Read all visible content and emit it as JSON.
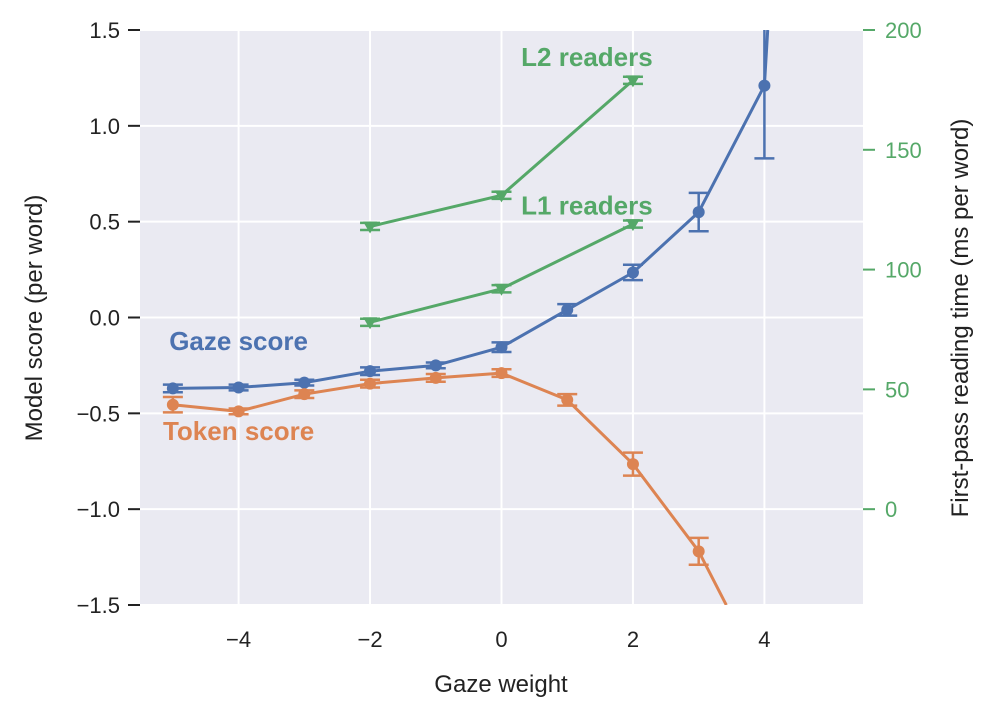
{
  "chart_data": {
    "type": "line",
    "xlabel": "Gaze weight",
    "ylabel": "Model score (per word)",
    "y2label": "First-pass reading time (ms per word)",
    "xlim": [
      -5.5,
      5.5
    ],
    "ylim": [
      -1.5,
      1.5
    ],
    "y2lim": [
      -40,
      200
    ],
    "xticks": [
      -4,
      -2,
      0,
      2,
      4
    ],
    "xtick_labels": [
      "−4",
      "−2",
      "0",
      "2",
      "4"
    ],
    "yticks": [
      -1.5,
      -1.0,
      -0.5,
      0.0,
      0.5,
      1.0,
      1.5
    ],
    "ytick_labels": [
      "−1.5",
      "−1.0",
      "−0.5",
      "0.0",
      "0.5",
      "1.0",
      "1.5"
    ],
    "y2ticks": [
      0,
      50,
      100,
      150,
      200
    ],
    "y2tick_labels": [
      "0",
      "50",
      "100",
      "150",
      "200"
    ],
    "grid": true,
    "colors": {
      "background": "#eaeaf2",
      "grid": "#ffffff",
      "blue": "#4c72b0",
      "orange": "#dd8452",
      "green": "#55a868"
    },
    "series": [
      {
        "name": "Gaze score",
        "axis": "left",
        "color": "#4c72b0",
        "marker": "circle",
        "x": [
          -5,
          -4,
          -3,
          -2,
          -1,
          0,
          1,
          2,
          3,
          4,
          4.05
        ],
        "y": [
          -0.37,
          -0.365,
          -0.34,
          -0.28,
          -0.25,
          -0.155,
          0.04,
          0.235,
          0.55,
          1.21,
          1.5
        ],
        "err": [
          0.02,
          0.015,
          0.015,
          0.02,
          0.015,
          0.025,
          0.03,
          0.04,
          0.1,
          0.38,
          0
        ],
        "label_at": [
          -4,
          -0.17
        ]
      },
      {
        "name": "Token score",
        "axis": "left",
        "color": "#dd8452",
        "marker": "circle",
        "x": [
          -5,
          -4,
          -3,
          -2,
          -1,
          0,
          1,
          2,
          3,
          3.42
        ],
        "y": [
          -0.455,
          -0.49,
          -0.4,
          -0.345,
          -0.315,
          -0.29,
          -0.43,
          -0.765,
          -1.22,
          -1.5
        ],
        "err": [
          0.04,
          0.015,
          0.02,
          0.02,
          0.02,
          0.02,
          0.03,
          0.06,
          0.07,
          0
        ],
        "label_at": [
          -4,
          -0.64
        ]
      },
      {
        "name": "L2 readers",
        "axis": "right",
        "color": "#55a868",
        "marker": "triangle-down",
        "x": [
          -2,
          0,
          2
        ],
        "y": [
          118,
          131,
          179
        ],
        "err": [
          1.5,
          1.5,
          1.5
        ],
        "label_at": [
          1.3,
          185
        ]
      },
      {
        "name": "L1 readers",
        "axis": "right",
        "color": "#55a868",
        "marker": "triangle-down",
        "x": [
          -2,
          0,
          2
        ],
        "y": [
          78,
          92,
          119
        ],
        "err": [
          1.5,
          1.5,
          1.5
        ],
        "label_at": [
          1.3,
          123
        ]
      }
    ]
  }
}
